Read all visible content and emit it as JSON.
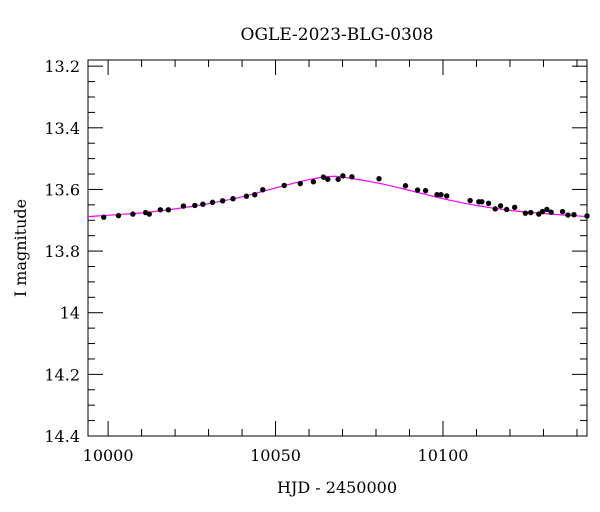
{
  "chart_data": {
    "type": "scatter",
    "title": "OGLE-2023-BLG-0308",
    "xlabel": "HJD - 2450000",
    "ylabel": "I magnitude",
    "xlim": [
      9994,
      10143
    ],
    "ylim": [
      14.4,
      13.18
    ],
    "y_inverted": true,
    "x_ticks": [
      10000,
      10050,
      10100
    ],
    "x_tick_labels": [
      "10000",
      "10050",
      "10100"
    ],
    "y_ticks": [
      13.2,
      13.4,
      13.6,
      13.8,
      14,
      14.2,
      14.4
    ],
    "y_tick_labels": [
      "13.2",
      "13.4",
      "13.6",
      "13.8",
      "14",
      "14.2",
      "14.4"
    ],
    "colors": {
      "points": "#000000",
      "model": "#ff00ff",
      "axes": "#000000"
    },
    "series": [
      {
        "kind": "points",
        "x": [
          9998.7,
          10003.1,
          10007.4,
          10011.2,
          10012.3,
          10015.6,
          10018.0,
          10022.5,
          10025.9,
          10028.3,
          10031.2,
          10034.2,
          10037.3,
          10041.3,
          10043.8,
          10046.2,
          10052.6,
          10057.4,
          10061.3,
          10064.3,
          10065.6,
          10068.7,
          10070.1,
          10072.8,
          10080.9,
          10088.8,
          10092.4,
          10094.8,
          10098.2,
          10099.4,
          10101.1,
          10108.1,
          10110.7,
          10111.6,
          10113.6,
          10115.6,
          10117.2,
          10119.0,
          10121.4,
          10124.6,
          10126.2,
          10128.6,
          10129.7,
          10131.0,
          10132.3,
          10135.7,
          10137.3,
          10139.1,
          10143.0,
          10144.9
        ],
        "y": [
          13.69,
          13.685,
          13.68,
          13.675,
          13.68,
          13.666,
          13.666,
          13.654,
          13.652,
          13.648,
          13.642,
          13.637,
          13.63,
          13.622,
          13.617,
          13.601,
          13.587,
          13.581,
          13.575,
          13.56,
          13.567,
          13.567,
          13.556,
          13.559,
          13.565,
          13.588,
          13.602,
          13.604,
          13.617,
          13.617,
          13.621,
          13.636,
          13.64,
          13.64,
          13.645,
          13.663,
          13.653,
          13.665,
          13.658,
          13.677,
          13.675,
          13.68,
          13.672,
          13.665,
          13.674,
          13.672,
          13.683,
          13.682,
          13.686,
          13.693
        ]
      },
      {
        "kind": "model",
        "x": [
          9994,
          10010,
          10020,
          10030,
          10040,
          10050,
          10060,
          10066,
          10070,
          10080,
          10090,
          10100,
          10110,
          10120,
          10130,
          10143
        ],
        "y": [
          13.688,
          13.676,
          13.663,
          13.646,
          13.624,
          13.595,
          13.568,
          13.558,
          13.56,
          13.578,
          13.603,
          13.63,
          13.652,
          13.668,
          13.678,
          13.688
        ]
      }
    ]
  }
}
